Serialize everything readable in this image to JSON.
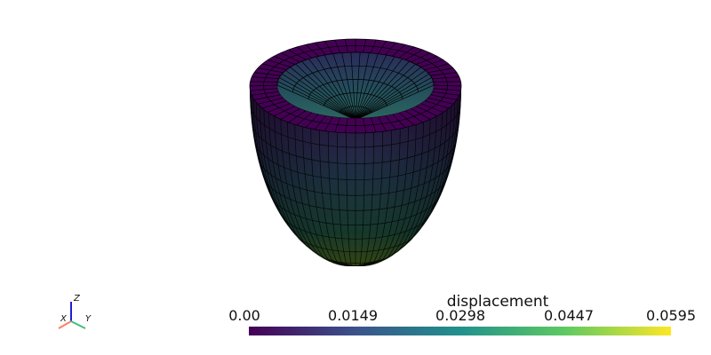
{
  "scalar_bar": {
    "title": "displacement",
    "ticks": [
      "0.00",
      "0.0149",
      "0.0298",
      "0.0447",
      "0.0595"
    ],
    "colormap": [
      "#440154",
      "#3b528b",
      "#21918c",
      "#5ec962",
      "#fde725"
    ]
  },
  "orientation_axes": {
    "x_label": "X",
    "y_label": "Y",
    "z_label": "Z",
    "x_color": "#ff7f5f",
    "y_color": "#3fbf7f",
    "z_color": "#1f1fcf"
  },
  "mesh": {
    "shape": "truncated ellipsoid shell (left ventricle)",
    "edge_color": "#000000",
    "top_color": "#440154",
    "bottom_color": "#4a7a2e"
  }
}
